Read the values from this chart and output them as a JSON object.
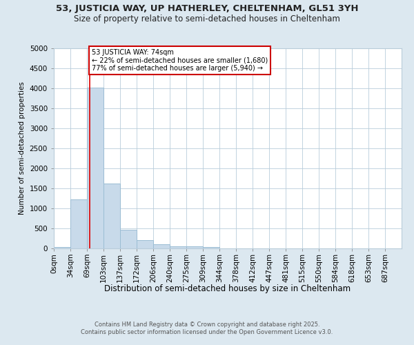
{
  "title1": "53, JUSTICIA WAY, UP HATHERLEY, CHELTENHAM, GL51 3YH",
  "title2": "Size of property relative to semi-detached houses in Cheltenham",
  "xlabel": "Distribution of semi-detached houses by size in Cheltenham",
  "ylabel": "Number of semi-detached properties",
  "bar_color": "#c8daea",
  "bar_edge_color": "#9bbdd4",
  "marker_line_color": "#dd0000",
  "annotation_box_edge_color": "#cc0000",
  "categories": [
    "0sqm",
    "34sqm",
    "69sqm",
    "103sqm",
    "137sqm",
    "172sqm",
    "206sqm",
    "240sqm",
    "275sqm",
    "309sqm",
    "344sqm",
    "378sqm",
    "412sqm",
    "447sqm",
    "481sqm",
    "515sqm",
    "550sqm",
    "584sqm",
    "618sqm",
    "653sqm",
    "687sqm"
  ],
  "values": [
    30,
    1230,
    4010,
    1620,
    470,
    200,
    105,
    55,
    45,
    30,
    0,
    0,
    0,
    0,
    0,
    0,
    0,
    0,
    0,
    0,
    0
  ],
  "ylim": [
    0,
    5000
  ],
  "yticks": [
    0,
    500,
    1000,
    1500,
    2000,
    2500,
    3000,
    3500,
    4000,
    4500,
    5000
  ],
  "property_sqm": 74,
  "annotation_line1": "53 JUSTICIA WAY: 74sqm",
  "annotation_line2": "← 22% of semi-detached houses are smaller (1,680)",
  "annotation_line3": "77% of semi-detached houses are larger (5,940) →",
  "footer1": "Contains HM Land Registry data © Crown copyright and database right 2025.",
  "footer2": "Contains public sector information licensed under the Open Government Licence v3.0.",
  "background_color": "#dce8f0",
  "plot_background_color": "#ffffff",
  "grid_color": "#b8ccda",
  "bin_width": 34
}
